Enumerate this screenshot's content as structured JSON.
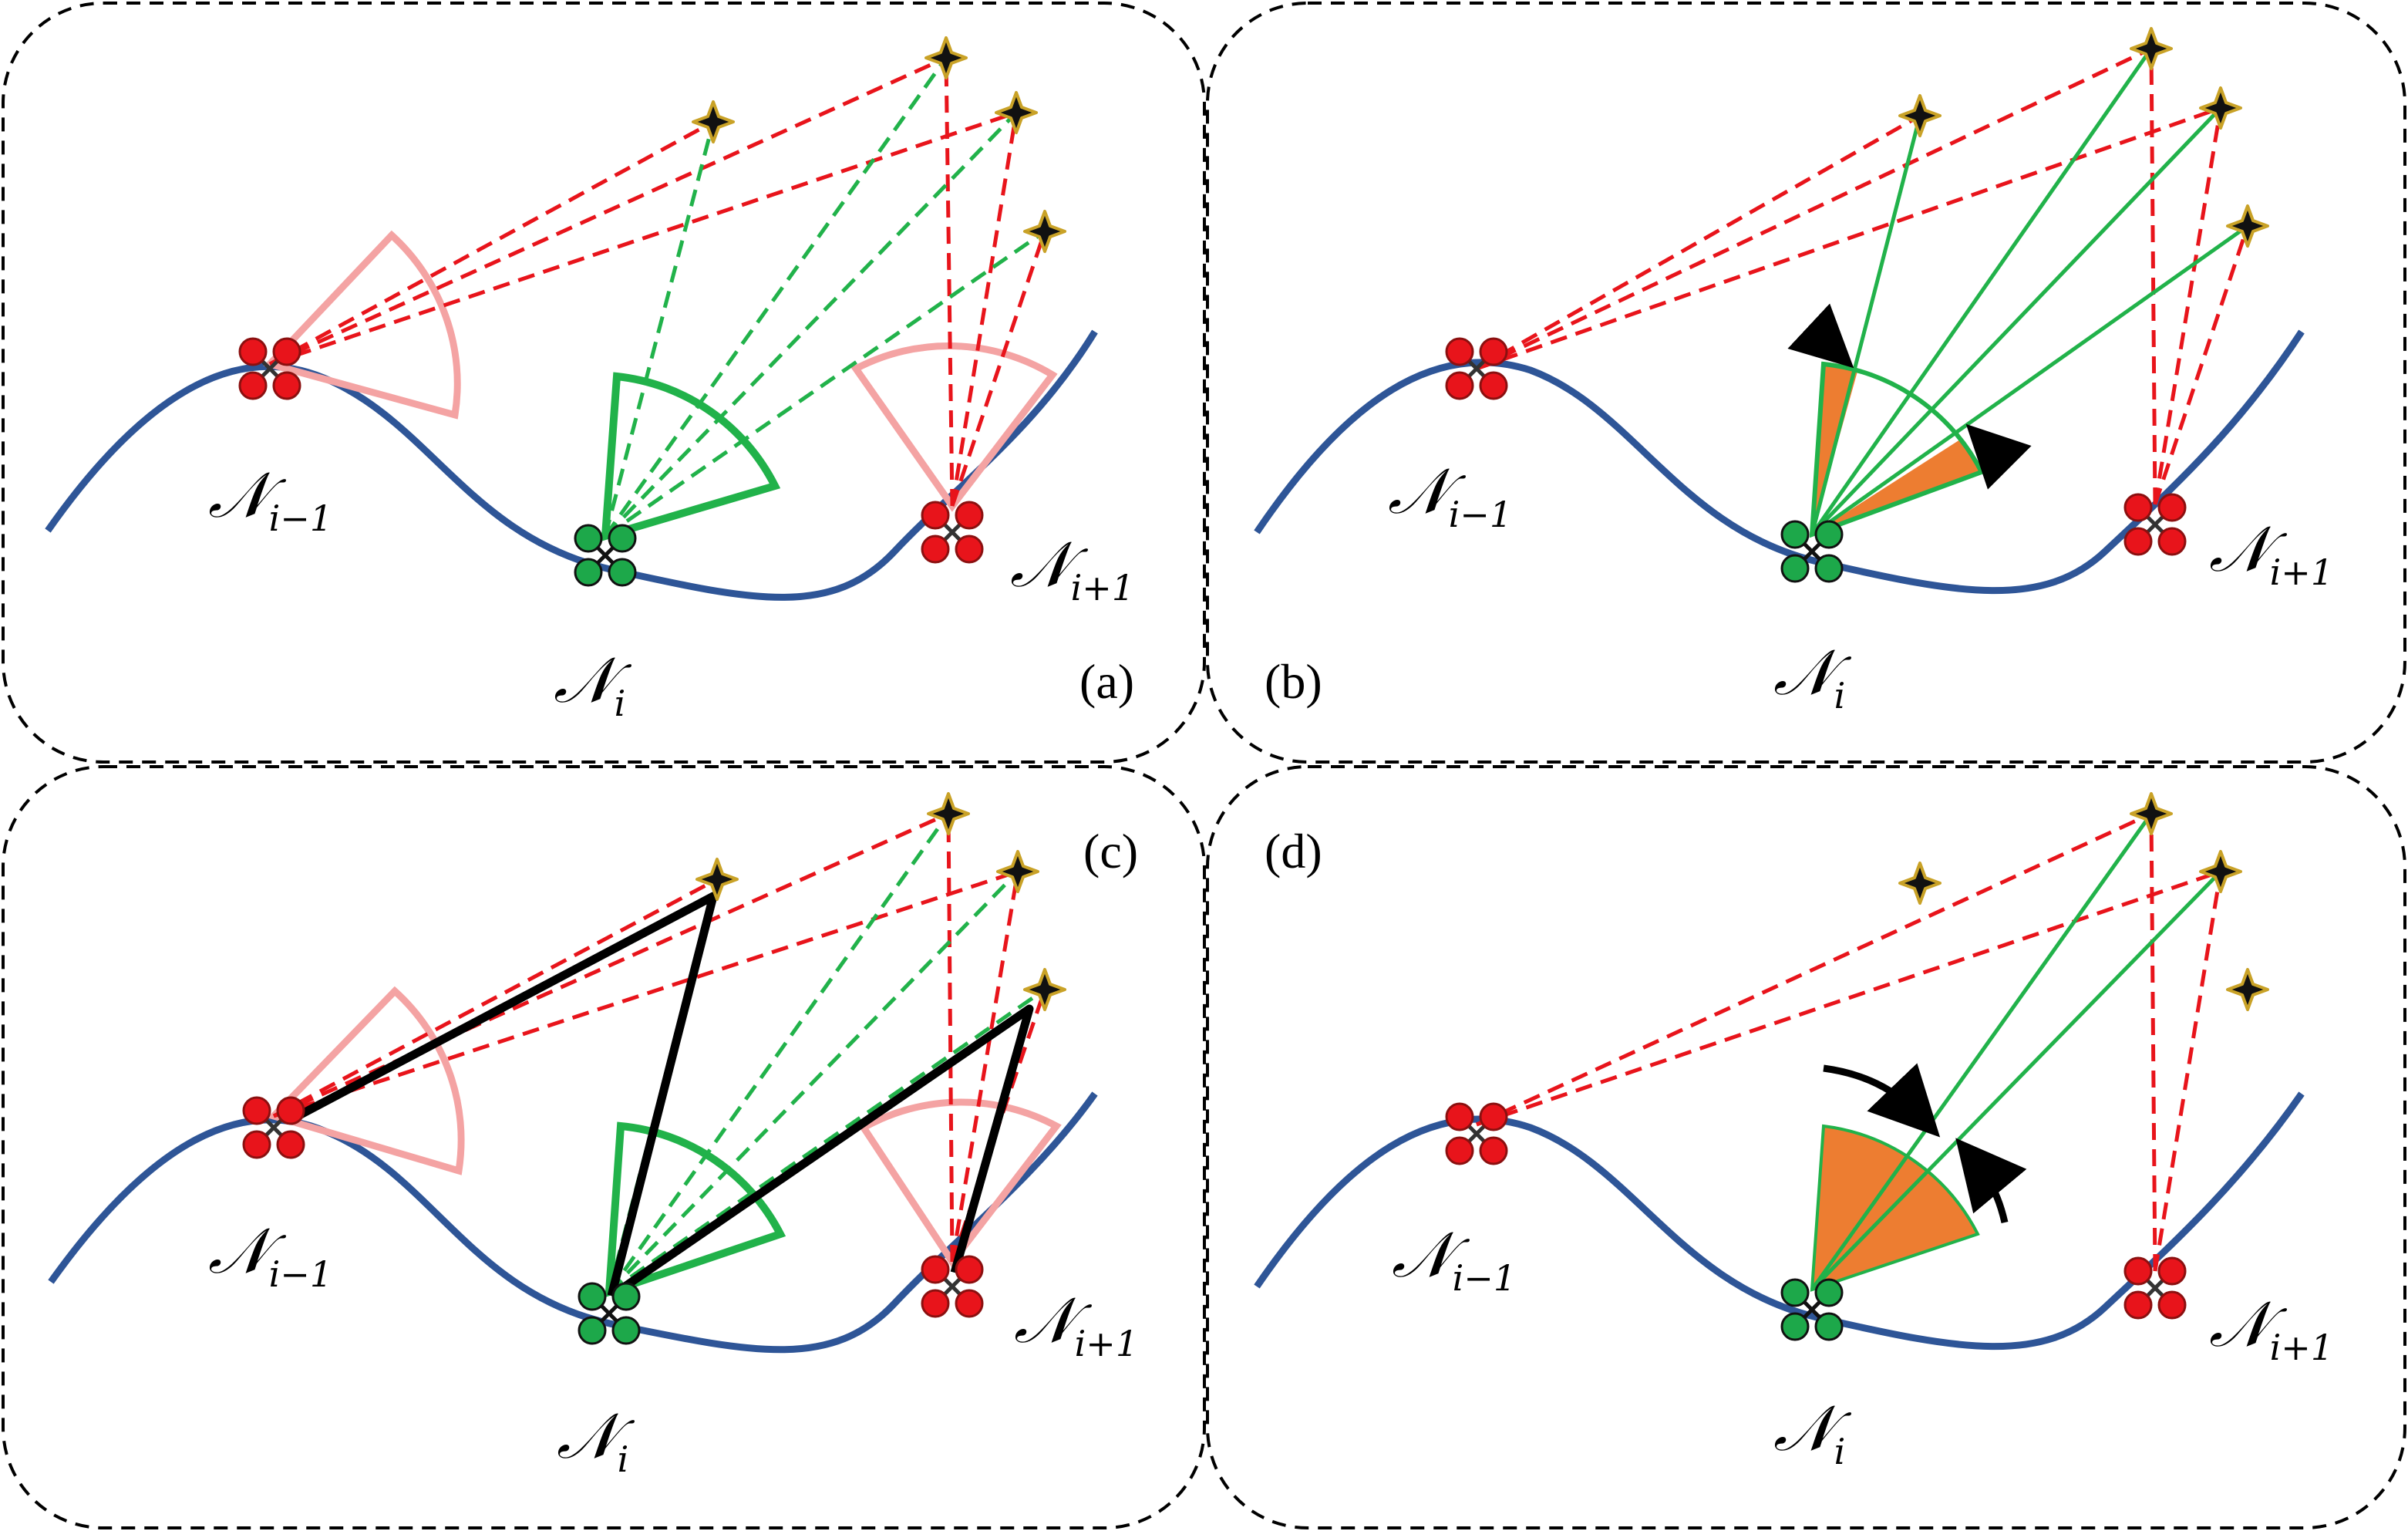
{
  "panels": [
    {
      "id": "(a)",
      "labels": {
        "prev": "i−1",
        "cur": "i",
        "next": "i+1"
      }
    },
    {
      "id": "(b)",
      "labels": {
        "prev": "i−1",
        "cur": "i",
        "next": "i+1"
      }
    },
    {
      "id": "(c)",
      "labels": {
        "prev": "i−1",
        "cur": "i",
        "next": "i+1"
      }
    },
    {
      "id": "(d)",
      "labels": {
        "prev": "i−1",
        "cur": "i",
        "next": "i+1"
      }
    }
  ],
  "node_symbol": "𝒩",
  "colors": {
    "trajectory": "#2E5597",
    "neighbor_drone": "#E8141B",
    "ego_drone": "#1DA84A",
    "fov_neighbor": "#F4A3A3",
    "fov_ego": "#21B24A",
    "dashed_red": "#E8141B",
    "dashed_green": "#21B24A",
    "occluded_sector": "#ED7D31",
    "star_fill": "#111111",
    "star_outline": "#C9A227",
    "triangle_edge": "#000000"
  }
}
